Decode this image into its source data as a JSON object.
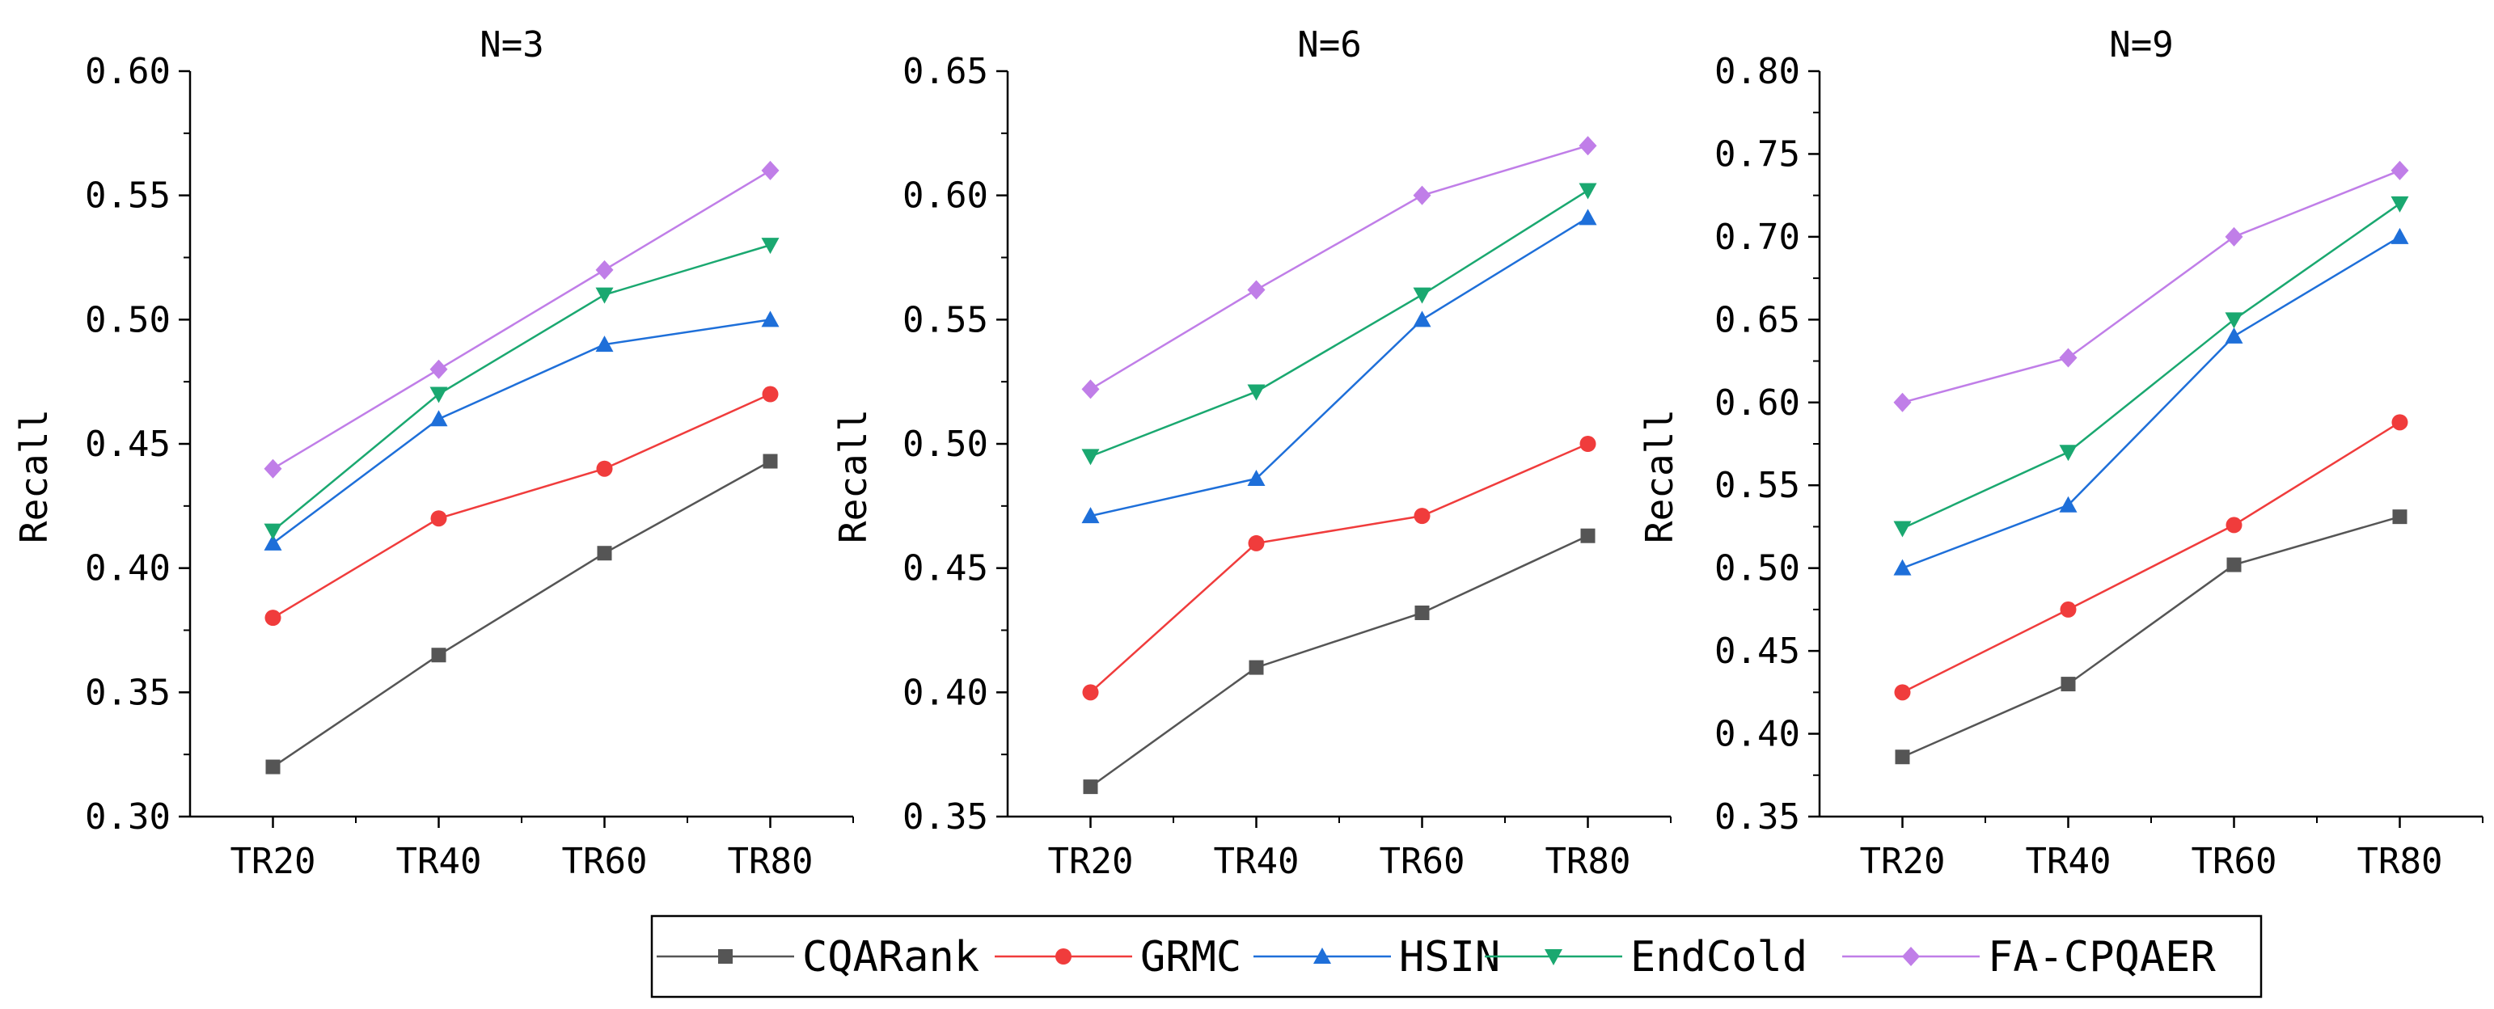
{
  "chart_data": [
    {
      "type": "line",
      "title": "N=3",
      "xlabel": "",
      "ylabel": "Recall",
      "categories": [
        "TR20",
        "TR40",
        "TR60",
        "TR80"
      ],
      "ylim": [
        0.3,
        0.6
      ],
      "yticks": [
        "0.30",
        "0.35",
        "0.40",
        "0.45",
        "0.50",
        "0.55",
        "0.60"
      ],
      "series": [
        {
          "name": "CQARank",
          "values": [
            0.32,
            0.365,
            0.406,
            0.443
          ]
        },
        {
          "name": "GRMC",
          "values": [
            0.38,
            0.42,
            0.44,
            0.47
          ]
        },
        {
          "name": "HSIN",
          "values": [
            0.41,
            0.46,
            0.49,
            0.5
          ]
        },
        {
          "name": "EndCold",
          "values": [
            0.415,
            0.47,
            0.51,
            0.53
          ]
        },
        {
          "name": "FA-CPQAER",
          "values": [
            0.44,
            0.48,
            0.52,
            0.56
          ]
        }
      ]
    },
    {
      "type": "line",
      "title": "N=6",
      "xlabel": "",
      "ylabel": "Recall",
      "categories": [
        "TR20",
        "TR40",
        "TR60",
        "TR80"
      ],
      "ylim": [
        0.35,
        0.65
      ],
      "yticks": [
        "0.35",
        "0.40",
        "0.45",
        "0.50",
        "0.55",
        "0.60",
        "0.65"
      ],
      "series": [
        {
          "name": "CQARank",
          "values": [
            0.362,
            0.41,
            0.432,
            0.463
          ]
        },
        {
          "name": "GRMC",
          "values": [
            0.4,
            0.46,
            0.471,
            0.5
          ]
        },
        {
          "name": "HSIN",
          "values": [
            0.471,
            0.486,
            0.55,
            0.591
          ]
        },
        {
          "name": "EndCold",
          "values": [
            0.495,
            0.521,
            0.56,
            0.602
          ]
        },
        {
          "name": "FA-CPQAER",
          "values": [
            0.522,
            0.562,
            0.6,
            0.62
          ]
        }
      ]
    },
    {
      "type": "line",
      "title": "N=9",
      "xlabel": "",
      "ylabel": "Recall",
      "categories": [
        "TR20",
        "TR40",
        "TR60",
        "TR80"
      ],
      "ylim": [
        0.35,
        0.8
      ],
      "yticks": [
        "0.35",
        "0.40",
        "0.45",
        "0.50",
        "0.55",
        "0.60",
        "0.65",
        "0.70",
        "0.75",
        "0.80"
      ],
      "series": [
        {
          "name": "CQARank",
          "values": [
            0.386,
            0.43,
            0.502,
            0.531
          ]
        },
        {
          "name": "GRMC",
          "values": [
            0.425,
            0.475,
            0.526,
            0.588
          ]
        },
        {
          "name": "HSIN",
          "values": [
            0.5,
            0.538,
            0.64,
            0.7
          ]
        },
        {
          "name": "EndCold",
          "values": [
            0.524,
            0.57,
            0.65,
            0.72
          ]
        },
        {
          "name": "FA-CPQAER",
          "values": [
            0.6,
            0.627,
            0.7,
            0.74
          ]
        }
      ]
    }
  ],
  "legend": {
    "position": "bottom-center",
    "items": [
      {
        "name": "CQARank",
        "color": "#555555",
        "marker": "square"
      },
      {
        "name": "GRMC",
        "color": "#f03c3c",
        "marker": "circle"
      },
      {
        "name": "HSIN",
        "color": "#1e6fd9",
        "marker": "triangle-up"
      },
      {
        "name": "EndCold",
        "color": "#1aa870",
        "marker": "triangle-down"
      },
      {
        "name": "FA-CPQAER",
        "color": "#c07ee8",
        "marker": "diamond"
      }
    ]
  }
}
